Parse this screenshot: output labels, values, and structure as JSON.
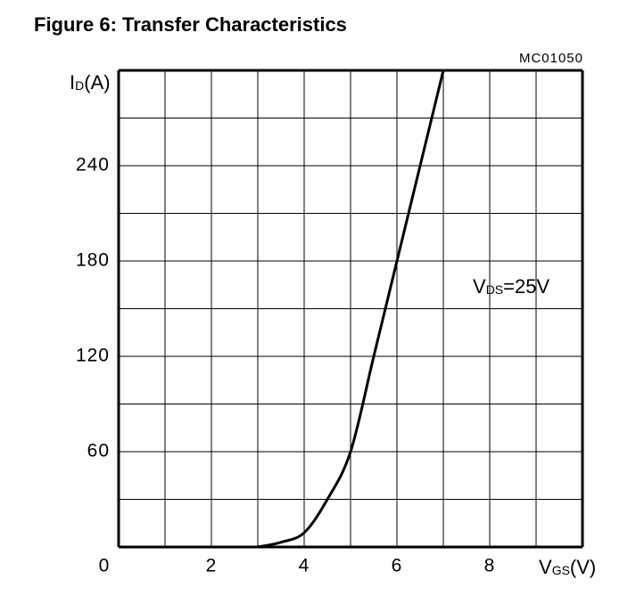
{
  "chart_data": {
    "type": "line",
    "title": "Figure 6: Transfer Characteristics",
    "code": "MC01050",
    "x_label": {
      "main": "V",
      "sub": "GS",
      "unit": "(V)"
    },
    "y_label": {
      "main": "I",
      "sub": "D",
      "unit": "(A)"
    },
    "annotation": {
      "main": "V",
      "sub": "DS",
      "rest": "=25V"
    },
    "x": [
      3,
      3.5,
      4,
      4.5,
      5,
      5.5,
      6,
      6.5,
      7
    ],
    "series": [
      {
        "color": "#000000",
        "values": [
          0,
          3,
          9,
          30,
          60,
          120,
          180,
          240,
          300
        ]
      }
    ],
    "xlim": [
      0,
      10
    ],
    "ylim": [
      0,
      300
    ],
    "xticks": [
      0,
      2,
      4,
      6,
      8
    ],
    "yticks": [
      60,
      120,
      180,
      240
    ],
    "x_minor_ticks": [
      1,
      3,
      5,
      7,
      9
    ],
    "y_minor_ticks": [
      30,
      90,
      150,
      210,
      270
    ],
    "grid": true
  }
}
